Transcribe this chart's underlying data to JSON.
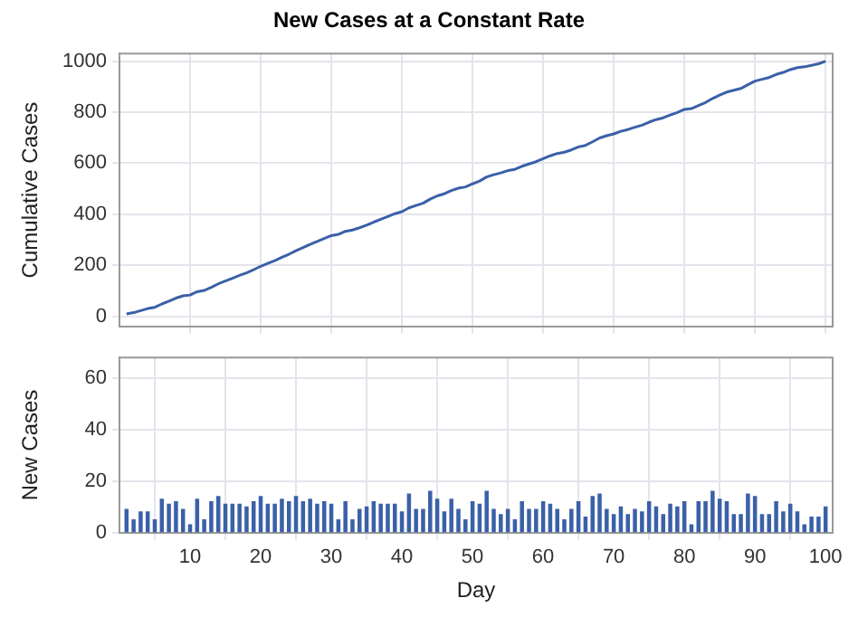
{
  "chart_data": [
    {
      "type": "line",
      "title": "New Cases at a Constant Rate",
      "ylabel": "Cumulative Cases",
      "x": [
        1,
        2,
        3,
        4,
        5,
        6,
        7,
        8,
        9,
        10,
        11,
        12,
        13,
        14,
        15,
        16,
        17,
        18,
        19,
        20,
        21,
        22,
        23,
        24,
        25,
        26,
        27,
        28,
        29,
        30,
        31,
        32,
        33,
        34,
        35,
        36,
        37,
        38,
        39,
        40,
        41,
        42,
        43,
        44,
        45,
        46,
        47,
        48,
        49,
        50,
        51,
        52,
        53,
        54,
        55,
        56,
        57,
        58,
        59,
        60,
        61,
        62,
        63,
        64,
        65,
        66,
        67,
        68,
        69,
        70,
        71,
        72,
        73,
        74,
        75,
        76,
        77,
        78,
        79,
        80,
        81,
        82,
        83,
        84,
        85,
        86,
        87,
        88,
        89,
        90,
        91,
        92,
        93,
        94,
        95,
        96,
        97,
        98,
        99,
        100
      ],
      "series": [
        {
          "color": "#3a60a8",
          "values": [
            9,
            14,
            22,
            30,
            35,
            48,
            59,
            71,
            80,
            83,
            96,
            101,
            113,
            127,
            138,
            149,
            160,
            170,
            182,
            196,
            207,
            218,
            231,
            243,
            257,
            269,
            282,
            293,
            305,
            316,
            321,
            333,
            338,
            347,
            357,
            369,
            380,
            391,
            402,
            410,
            425,
            434,
            443,
            459,
            472,
            480,
            493,
            502,
            507,
            519,
            530,
            546,
            555,
            562,
            571,
            576,
            588,
            597,
            606,
            618,
            629,
            638,
            643,
            652,
            664,
            670,
            684,
            699,
            708,
            715,
            725,
            732,
            741,
            749,
            761,
            771,
            778,
            789,
            799,
            811,
            814,
            826,
            838,
            854,
            867,
            879,
            886,
            893,
            908,
            922,
            929,
            936,
            948,
            956,
            967,
            975,
            978,
            984,
            990,
            1000
          ]
        }
      ],
      "xlim": [
        0,
        101
      ],
      "xticks": [
        10,
        20,
        30,
        40,
        50,
        60,
        70,
        80,
        90,
        100
      ],
      "ylim": [
        -40,
        1030
      ],
      "yticks": [
        0,
        200,
        400,
        600,
        800,
        1000
      ],
      "grid": true,
      "tick_labels": "y",
      "line_style": "solid",
      "marker": "none"
    },
    {
      "type": "bar",
      "xlabel": "Day",
      "ylabel": "New Cases",
      "x": [
        1,
        2,
        3,
        4,
        5,
        6,
        7,
        8,
        9,
        10,
        11,
        12,
        13,
        14,
        15,
        16,
        17,
        18,
        19,
        20,
        21,
        22,
        23,
        24,
        25,
        26,
        27,
        28,
        29,
        30,
        31,
        32,
        33,
        34,
        35,
        36,
        37,
        38,
        39,
        40,
        41,
        42,
        43,
        44,
        45,
        46,
        47,
        48,
        49,
        50,
        51,
        52,
        53,
        54,
        55,
        56,
        57,
        58,
        59,
        60,
        61,
        62,
        63,
        64,
        65,
        66,
        67,
        68,
        69,
        70,
        71,
        72,
        73,
        74,
        75,
        76,
        77,
        78,
        79,
        80,
        81,
        82,
        83,
        84,
        85,
        86,
        87,
        88,
        89,
        90,
        91,
        92,
        93,
        94,
        95,
        96,
        97,
        98,
        99,
        100
      ],
      "series": [
        {
          "color": "#3a60a8",
          "values": [
            9,
            5,
            8,
            8,
            5,
            13,
            11,
            12,
            9,
            3,
            13,
            5,
            12,
            14,
            11,
            11,
            11,
            10,
            12,
            14,
            11,
            11,
            13,
            12,
            14,
            12,
            13,
            11,
            12,
            11,
            5,
            12,
            5,
            9,
            10,
            12,
            11,
            11,
            11,
            8,
            15,
            9,
            9,
            16,
            13,
            8,
            13,
            9,
            5,
            12,
            11,
            16,
            9,
            7,
            9,
            5,
            12,
            9,
            9,
            12,
            11,
            9,
            5,
            9,
            12,
            6,
            14,
            15,
            9,
            7,
            10,
            7,
            9,
            8,
            12,
            10,
            7,
            11,
            10,
            12,
            3,
            12,
            12,
            16,
            13,
            12,
            7,
            7,
            15,
            14,
            7,
            7,
            12,
            8,
            11,
            8,
            3,
            6,
            6,
            10
          ]
        }
      ],
      "xlim": [
        0,
        101
      ],
      "xticks": [
        10,
        20,
        30,
        40,
        50,
        60,
        70,
        80,
        90,
        100
      ],
      "ylim": [
        0,
        68
      ],
      "yticks": [
        0,
        20,
        40,
        60
      ],
      "grid": true
    }
  ]
}
